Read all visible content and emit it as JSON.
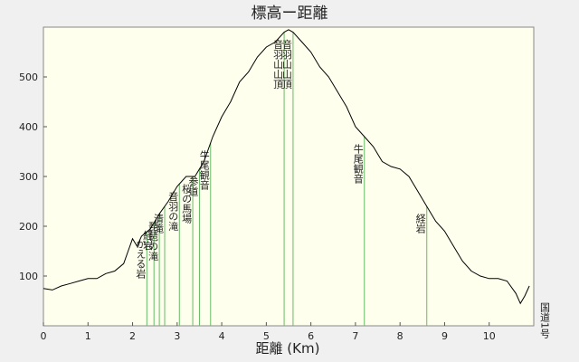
{
  "chart_data": {
    "type": "line",
    "title": "標高ー距離",
    "xlabel": "距離 (Km)",
    "x": [
      0,
      0.2,
      0.4,
      0.6,
      0.8,
      1.0,
      1.2,
      1.4,
      1.6,
      1.8,
      1.9,
      2.0,
      2.1,
      2.2,
      2.4,
      2.6,
      2.8,
      3.0,
      3.2,
      3.4,
      3.6,
      3.8,
      4.0,
      4.2,
      4.4,
      4.6,
      4.8,
      5.0,
      5.2,
      5.4,
      5.5,
      5.6,
      5.8,
      6.0,
      6.2,
      6.4,
      6.6,
      6.8,
      7.0,
      7.2,
      7.4,
      7.6,
      7.8,
      8.0,
      8.2,
      8.4,
      8.6,
      8.8,
      9.0,
      9.2,
      9.4,
      9.6,
      9.8,
      10.0,
      10.2,
      10.4,
      10.6,
      10.7,
      10.8,
      10.9
    ],
    "values": [
      75,
      72,
      80,
      85,
      90,
      95,
      95,
      105,
      110,
      125,
      150,
      175,
      160,
      180,
      195,
      225,
      250,
      280,
      300,
      300,
      330,
      380,
      420,
      450,
      490,
      510,
      540,
      560,
      570,
      590,
      595,
      590,
      570,
      550,
      520,
      500,
      470,
      440,
      400,
      380,
      360,
      330,
      320,
      315,
      300,
      270,
      240,
      210,
      190,
      160,
      130,
      110,
      100,
      95,
      95,
      90,
      65,
      45,
      60,
      80
    ],
    "color": "#000000",
    "annotations": [
      {
        "x": 2.32,
        "label": "かえる岩"
      },
      {
        "x": 2.48,
        "label": "経岩"
      },
      {
        "x": 2.6,
        "label": "琵琶の滝"
      },
      {
        "x": 2.72,
        "label": "清滝"
      },
      {
        "x": 3.05,
        "label": "音羽の滝"
      },
      {
        "x": 3.35,
        "label": "桜の馬場"
      },
      {
        "x": 3.5,
        "label": "参道"
      },
      {
        "x": 3.75,
        "label": "牛尾観音"
      },
      {
        "x": 5.4,
        "label": "音羽山山頂"
      },
      {
        "x": 5.6,
        "label": "音羽山山頂"
      },
      {
        "x": 7.2,
        "label": "牛尾観音"
      },
      {
        "x": 8.6,
        "label": "経岩"
      },
      {
        "x": 11.0,
        "label": "国道1号"
      }
    ],
    "annotation_color": "#66bb66",
    "xlim": [
      0,
      11
    ],
    "ylim": [
      0,
      600
    ],
    "xticks": [
      0,
      1,
      2,
      3,
      4,
      5,
      6,
      7,
      8,
      9,
      10
    ],
    "yticks": [
      100,
      200,
      300,
      400,
      500
    ]
  }
}
